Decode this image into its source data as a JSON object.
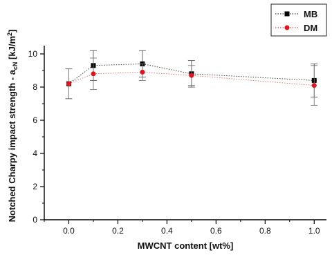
{
  "chart_data": {
    "type": "line",
    "title": "",
    "xlabel": "MWCNT content [wt%]",
    "ylabel": "Notched Charpy impact strength - a",
    "ylabel_subscript": "cN",
    "ylabel_unit": " [kJ/m",
    "ylabel_superscript": "2",
    "ylabel_close": "]",
    "xlim": [
      -0.1,
      1.05
    ],
    "ylim": [
      0,
      10.5
    ],
    "x_ticks": [
      0.0,
      0.2,
      0.4,
      0.6,
      0.8,
      1.0
    ],
    "x_tick_labels": [
      "0.0",
      "0.2",
      "0.4",
      "0.6",
      "0.8",
      "1.0"
    ],
    "y_ticks": [
      0,
      2,
      4,
      6,
      8,
      10
    ],
    "y_tick_labels": [
      "0",
      "2",
      "4",
      "6",
      "8",
      "10"
    ],
    "grid": false,
    "legend_position": "top-right",
    "series": [
      {
        "name": "MB",
        "color": "#000000",
        "marker": "square",
        "line_style": "dotted",
        "x": [
          0.0,
          0.1,
          0.3,
          0.5,
          1.0
        ],
        "y": [
          8.2,
          9.3,
          9.4,
          8.8,
          8.4
        ],
        "error": [
          0.9,
          0.9,
          0.8,
          0.8,
          1.0
        ]
      },
      {
        "name": "DM",
        "color": "#e0141e",
        "marker": "circle",
        "line_style": "dotted",
        "x": [
          0.0,
          0.1,
          0.3,
          0.5,
          1.0
        ],
        "y": [
          8.2,
          8.8,
          8.9,
          8.7,
          8.1
        ],
        "error": [
          0.9,
          0.95,
          0.5,
          0.6,
          1.2
        ]
      }
    ]
  }
}
